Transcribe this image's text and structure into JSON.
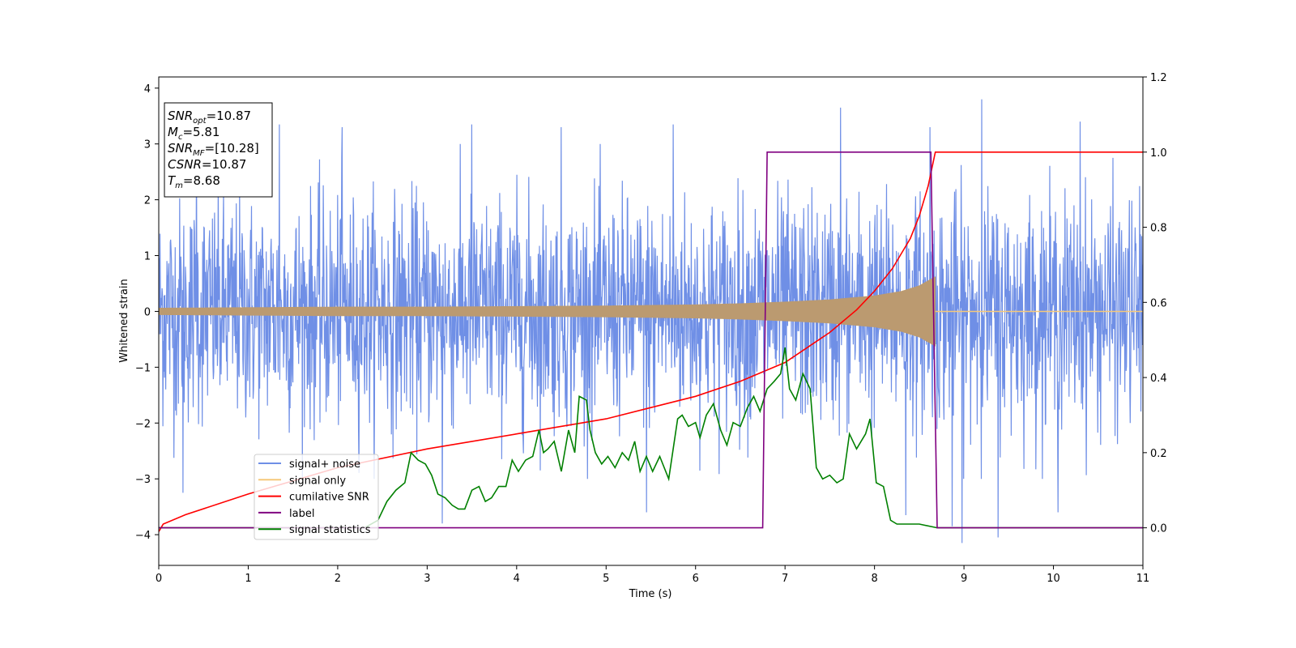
{
  "chart_data": {
    "type": "line",
    "xlabel": "Time (s)",
    "ylabel": "Whitened strain",
    "xlim": [
      0,
      11
    ],
    "ylim_left": [
      -4.55,
      4.2
    ],
    "ylim_right": [
      -0.1,
      1.2
    ],
    "x_ticks": [
      "0",
      "1",
      "2",
      "3",
      "4",
      "5",
      "6",
      "7",
      "8",
      "9",
      "10",
      "11"
    ],
    "y_ticks_left": [
      "4",
      "3",
      "2",
      "1",
      "0",
      "−1",
      "−2",
      "−3",
      "−4"
    ],
    "y_ticks_right": [
      "1.2",
      "1.0",
      "0.8",
      "0.6",
      "0.4",
      "0.2",
      "0.0"
    ],
    "info_box": [
      {
        "base": "SNR",
        "sub": "opt",
        "rest": "=10.87"
      },
      {
        "base": "M",
        "sub": "c",
        "rest": "=5.81"
      },
      {
        "base": "SNR",
        "sub": "MF",
        "rest": "=[10.28]"
      },
      {
        "base": "CSNR",
        "sub": "",
        "rest": "=10.87"
      },
      {
        "base": "T",
        "sub": "m",
        "rest": "=8.68"
      }
    ],
    "legend": {
      "placement": "lower-left",
      "entries": [
        {
          "label": "signal+ noise",
          "color": "#6f8fe6"
        },
        {
          "label": "signal only",
          "color": "#f5c87a"
        },
        {
          "label": "cumilative SNR",
          "color": "#ff0000"
        },
        {
          "label": "label",
          "color": "#800080"
        },
        {
          "label": "signal statistics",
          "color": "#008000"
        }
      ]
    },
    "series": [
      {
        "name": "signal+ noise",
        "axis": "left",
        "color": "#6f8fe6",
        "noise_sigma": 1.0,
        "x_range": [
          0,
          11
        ],
        "peaks": [
          [
            0.42,
            3.25
          ],
          [
            1.35,
            3.35
          ],
          [
            2.05,
            3.3
          ],
          [
            3.5,
            3.35
          ],
          [
            4.5,
            3.3
          ],
          [
            5.75,
            3.35
          ],
          [
            7.62,
            3.65
          ],
          [
            8.62,
            3.3
          ],
          [
            9.2,
            3.8
          ],
          [
            10.3,
            3.4
          ]
        ],
        "troughs": [
          [
            0.27,
            -3.25
          ],
          [
            3.17,
            -3.8
          ],
          [
            5.45,
            -3.6
          ],
          [
            8.35,
            -3.65
          ],
          [
            8.87,
            -3.85
          ],
          [
            8.98,
            -4.15
          ],
          [
            9.38,
            -4.05
          ],
          [
            10.05,
            -3.6
          ]
        ]
      },
      {
        "name": "signal only",
        "axis": "left",
        "color": "#f5c87a",
        "envelope": [
          [
            0,
            0.06
          ],
          [
            1,
            0.07
          ],
          [
            2,
            0.08
          ],
          [
            3,
            0.08
          ],
          [
            4,
            0.09
          ],
          [
            5,
            0.1
          ],
          [
            6,
            0.12
          ],
          [
            6.5,
            0.14
          ],
          [
            7,
            0.17
          ],
          [
            7.5,
            0.21
          ],
          [
            8,
            0.28
          ],
          [
            8.3,
            0.36
          ],
          [
            8.5,
            0.46
          ],
          [
            8.6,
            0.55
          ],
          [
            8.68,
            0.62
          ],
          [
            8.7,
            0.0
          ],
          [
            11,
            0.0
          ]
        ]
      },
      {
        "name": "cumilative SNR",
        "axis": "right",
        "color": "#ff0000",
        "x": [
          0,
          0.05,
          0.3,
          1,
          2,
          3,
          4,
          5,
          5.5,
          6,
          6.5,
          7,
          7.5,
          7.8,
          8,
          8.2,
          8.4,
          8.5,
          8.6,
          8.68,
          8.7,
          11
        ],
        "y": [
          -0.01,
          0.01,
          0.035,
          0.09,
          0.16,
          0.21,
          0.25,
          0.29,
          0.32,
          0.35,
          0.39,
          0.44,
          0.52,
          0.58,
          0.63,
          0.69,
          0.77,
          0.83,
          0.91,
          1.0,
          1.0,
          1.0
        ]
      },
      {
        "name": "label",
        "axis": "right",
        "color": "#800080",
        "x": [
          0,
          6.75,
          6.8,
          8.63,
          8.7,
          11
        ],
        "y": [
          0.0,
          0.0,
          1.0,
          1.0,
          0.0,
          0.0
        ]
      },
      {
        "name": "signal statistics",
        "axis": "right",
        "color": "#008000",
        "x": [
          0,
          1,
          2,
          2.3,
          2.45,
          2.55,
          2.65,
          2.75,
          2.82,
          2.9,
          2.98,
          3.05,
          3.12,
          3.2,
          3.28,
          3.35,
          3.42,
          3.5,
          3.58,
          3.65,
          3.72,
          3.8,
          3.88,
          3.95,
          4.02,
          4.1,
          4.18,
          4.25,
          4.3,
          4.35,
          4.42,
          4.5,
          4.58,
          4.65,
          4.7,
          4.78,
          4.82,
          4.88,
          4.95,
          5.02,
          5.1,
          5.18,
          5.25,
          5.32,
          5.38,
          5.45,
          5.52,
          5.6,
          5.7,
          5.8,
          5.85,
          5.92,
          6.0,
          6.05,
          6.12,
          6.2,
          6.28,
          6.35,
          6.42,
          6.5,
          6.58,
          6.65,
          6.72,
          6.8,
          6.88,
          6.95,
          7.0,
          7.05,
          7.12,
          7.2,
          7.28,
          7.35,
          7.42,
          7.5,
          7.58,
          7.65,
          7.72,
          7.8,
          7.9,
          7.95,
          8.02,
          8.1,
          8.18,
          8.25,
          8.35,
          8.5,
          8.7,
          9,
          10,
          11
        ],
        "y": [
          0.0,
          0.0,
          0.0,
          0.0,
          0.02,
          0.07,
          0.1,
          0.12,
          0.2,
          0.18,
          0.17,
          0.14,
          0.09,
          0.08,
          0.06,
          0.05,
          0.05,
          0.1,
          0.11,
          0.07,
          0.08,
          0.11,
          0.11,
          0.18,
          0.15,
          0.18,
          0.19,
          0.26,
          0.2,
          0.21,
          0.23,
          0.15,
          0.26,
          0.2,
          0.35,
          0.34,
          0.26,
          0.2,
          0.17,
          0.19,
          0.16,
          0.2,
          0.18,
          0.23,
          0.15,
          0.19,
          0.15,
          0.19,
          0.13,
          0.29,
          0.3,
          0.27,
          0.28,
          0.24,
          0.3,
          0.33,
          0.26,
          0.22,
          0.28,
          0.27,
          0.32,
          0.35,
          0.31,
          0.37,
          0.39,
          0.41,
          0.48,
          0.37,
          0.34,
          0.41,
          0.37,
          0.16,
          0.13,
          0.14,
          0.12,
          0.13,
          0.25,
          0.21,
          0.25,
          0.29,
          0.12,
          0.11,
          0.02,
          0.01,
          0.01,
          0.01,
          0.0,
          0.0,
          0.0,
          0.0
        ]
      }
    ]
  }
}
